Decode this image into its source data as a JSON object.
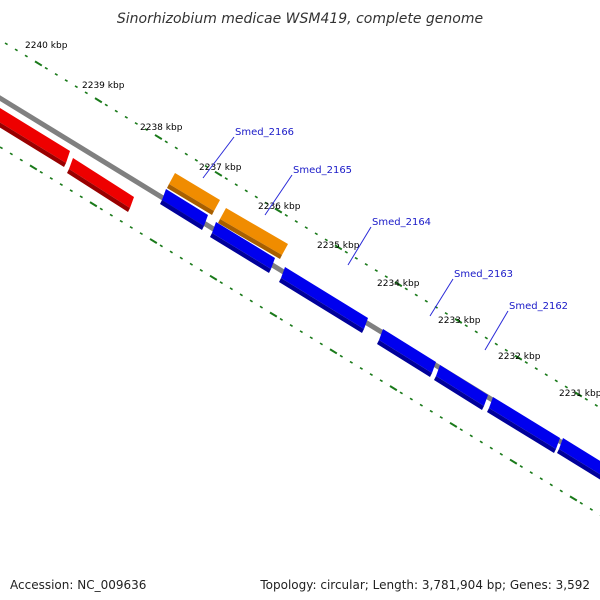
{
  "title": "Sinorhizobium medicae WSM419, complete genome",
  "footer": {
    "accession": "Accession: NC_009636",
    "summary": "Topology: circular; Length: 3,781,904 bp; Genes: 3,592"
  },
  "ticks": [
    "2240 kbp",
    "2239 kbp",
    "2238 kbp",
    "2237 kbp",
    "2236 kbp",
    "2235 kbp",
    "2234 kbp",
    "2233 kbp",
    "2232 kbp",
    "2231 kbp"
  ],
  "gene_labels": [
    "Smed_2166",
    "Smed_2165",
    "Smed_2164",
    "Smed_2163",
    "Smed_2162"
  ],
  "colors": {
    "backbone": "#808080",
    "tick_dots": "#1a7a1a",
    "forward_gene": "#f08c00",
    "reverse_gene": "#0000ee",
    "other_gene": "#ee0000",
    "label_line": "#2a2ad8"
  }
}
